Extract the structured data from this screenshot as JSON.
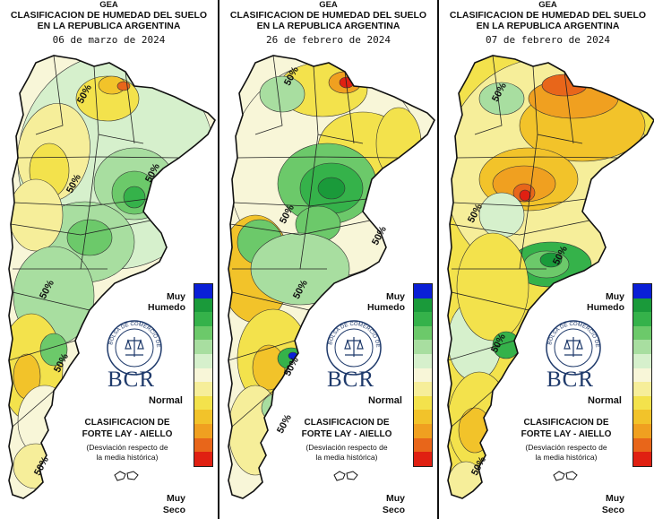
{
  "panels": [
    {
      "title_line1": "GEA",
      "title_line2": "CLASIFICACION DE HUMEDAD DEL SUELO",
      "title_line3": "EN LA REPUBLICA ARGENTINA",
      "date": "06 de marzo de 2024",
      "isoline_label": "50%"
    },
    {
      "title_line1": "GEA",
      "title_line2": "CLASIFICACION DE HUMEDAD DEL SUELO",
      "title_line3": "EN LA REPUBLICA ARGENTINA",
      "date": "26 de febrero de 2024",
      "isoline_label": "50%"
    },
    {
      "title_line1": "GEA",
      "title_line2": "CLASIFICACION DE HUMEDAD DEL SUELO",
      "title_line3": "EN LA REPUBLICA ARGENTINA",
      "date": "07 de febrero de 2024",
      "isoline_label": "50%"
    }
  ],
  "legend": {
    "muy_humedo_line1": "Muy",
    "muy_humedo_line2": "Humedo",
    "normal": "Normal",
    "muy_seco_line1": "Muy",
    "muy_seco_line2": "Seco",
    "colors": [
      "#0a1fd6",
      "#1a9a3a",
      "#35b24a",
      "#6cc96a",
      "#a8dea0",
      "#d6f0cc",
      "#f8f6d8",
      "#f6ee9a",
      "#f3e24c",
      "#f2c32a",
      "#f0a020",
      "#e8661a",
      "#e02012"
    ]
  },
  "classification": {
    "line1": "CLASIFICACION DE",
    "line2": "FORTE LAY - AIELLO",
    "desc_line1": "(Desviación respecto de",
    "desc_line2": "la media histórica)"
  },
  "logo": {
    "text": "BCR",
    "seal_text": "BOLSA DE COMERCIO DE ROSARIO"
  },
  "colors": {
    "muy_humedo": "#0a1fd6",
    "humedo": "#35b24a",
    "normal": "#f8f6d8",
    "seco": "#f3e24c",
    "muy_seco": "#e02012",
    "bcr_blue": "#1f3a6b"
  }
}
